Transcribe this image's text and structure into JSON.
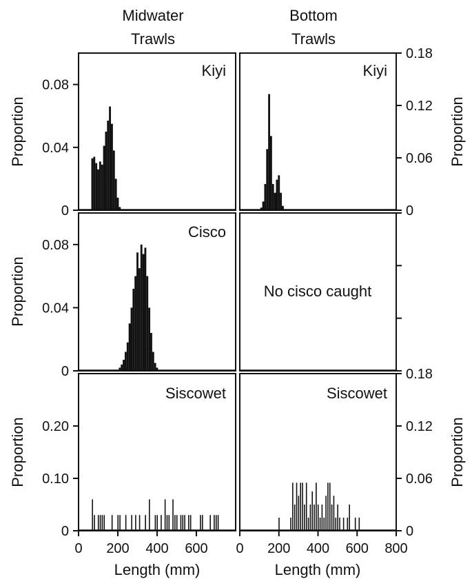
{
  "headers": {
    "left": [
      "Midwater",
      "Trawls"
    ],
    "right": [
      "Bottom",
      "Trawls"
    ]
  },
  "colors": {
    "ink": "#111111",
    "background": "#ffffff"
  },
  "chart_data": [
    {
      "id": "mid_kiyi",
      "type": "bar",
      "panel_label": "Kiyi",
      "ylabel": "Proportion",
      "xlim": [
        0,
        800
      ],
      "ylim": [
        0,
        0.1
      ],
      "yticks": [
        "0",
        "0.04",
        "0.08"
      ],
      "ytick_values": [
        0,
        0.04,
        0.08
      ],
      "bin_width": 10,
      "x": [
        70,
        80,
        90,
        100,
        110,
        120,
        130,
        140,
        150,
        160,
        170,
        180,
        190,
        200,
        210
      ],
      "values": [
        0.033,
        0.034,
        0.03,
        0.026,
        0.031,
        0.029,
        0.041,
        0.05,
        0.057,
        0.066,
        0.055,
        0.038,
        0.02,
        0.008,
        0.002
      ]
    },
    {
      "id": "bot_kiyi",
      "type": "bar",
      "panel_label": "Kiyi",
      "ylabel": "Proportion",
      "xlim": [
        0,
        800
      ],
      "ylim": [
        0,
        0.18
      ],
      "yticks": [
        "0",
        "0.06",
        "0.12",
        "0.18"
      ],
      "ytick_values": [
        0,
        0.06,
        0.12,
        0.18
      ],
      "bin_width": 10,
      "x": [
        110,
        120,
        130,
        140,
        150,
        160,
        170,
        180,
        190,
        200,
        210,
        220
      ],
      "values": [
        0.003,
        0.01,
        0.03,
        0.07,
        0.133,
        0.085,
        0.03,
        0.02,
        0.035,
        0.04,
        0.02,
        0.005
      ]
    },
    {
      "id": "mid_cisco",
      "type": "bar",
      "panel_label": "Cisco",
      "ylabel": "Proportion",
      "xlim": [
        0,
        800
      ],
      "ylim": [
        0,
        0.1
      ],
      "yticks": [
        "0",
        "0.04",
        "0.08"
      ],
      "ytick_values": [
        0,
        0.04,
        0.08
      ],
      "bin_width": 10,
      "x": [
        210,
        220,
        230,
        240,
        250,
        260,
        270,
        280,
        290,
        300,
        310,
        320,
        330,
        340,
        350,
        360,
        370,
        380,
        390,
        400
      ],
      "values": [
        0.002,
        0.004,
        0.007,
        0.012,
        0.018,
        0.03,
        0.04,
        0.052,
        0.06,
        0.075,
        0.065,
        0.08,
        0.074,
        0.078,
        0.06,
        0.04,
        0.024,
        0.012,
        0.005,
        0.002
      ]
    },
    {
      "id": "bot_cisco",
      "type": "bar",
      "panel_label": "",
      "note": "No cisco caught",
      "xlim": [
        0,
        800
      ],
      "ylim": [
        0,
        0.18
      ],
      "yticks": [],
      "ytick_values": [
        0,
        0.06,
        0.12,
        0.18
      ],
      "x": [],
      "values": []
    },
    {
      "id": "mid_siscowet",
      "type": "bar",
      "panel_label": "Siscowet",
      "ylabel": "Proportion",
      "xlabel": "Length (mm)",
      "xlim": [
        0,
        800
      ],
      "ylim": [
        0,
        0.3
      ],
      "xticks": [
        "0",
        "200",
        "400",
        "600"
      ],
      "xtick_values": [
        0,
        200,
        400,
        600
      ],
      "yticks": [
        "0",
        "0.10",
        "0.20"
      ],
      "ytick_values": [
        0,
        0.1,
        0.2
      ],
      "bin_width": 4,
      "x": [
        70,
        80,
        100,
        110,
        120,
        130,
        170,
        200,
        210,
        240,
        270,
        290,
        310,
        340,
        360,
        390,
        400,
        420,
        440,
        450,
        460,
        480,
        490,
        500,
        520,
        530,
        540,
        560,
        570,
        620,
        630,
        670,
        690,
        700,
        710
      ],
      "values": [
        0.06,
        0.03,
        0.03,
        0.03,
        0.03,
        0.03,
        0.03,
        0.03,
        0.03,
        0.03,
        0.03,
        0.03,
        0.03,
        0.03,
        0.06,
        0.03,
        0.03,
        0.03,
        0.06,
        0.03,
        0.03,
        0.06,
        0.03,
        0.03,
        0.03,
        0.03,
        0.03,
        0.03,
        0.03,
        0.03,
        0.03,
        0.03,
        0.03,
        0.03,
        0.03
      ]
    },
    {
      "id": "bot_siscowet",
      "type": "bar",
      "panel_label": "Siscowet",
      "ylabel": "Proportion",
      "xlabel": "Length (mm)",
      "xlim": [
        0,
        800
      ],
      "ylim": [
        0,
        0.18
      ],
      "xticks": [
        "0",
        "200",
        "400",
        "600",
        "800"
      ],
      "xtick_values": [
        0,
        200,
        400,
        600,
        800
      ],
      "yticks": [
        "0",
        "0.06",
        "0.12",
        "0.18"
      ],
      "ytick_values": [
        0,
        0.06,
        0.12,
        0.18
      ],
      "bin_width": 4,
      "x": [
        200,
        260,
        270,
        280,
        290,
        300,
        310,
        320,
        330,
        340,
        350,
        360,
        370,
        380,
        390,
        400,
        410,
        420,
        430,
        440,
        450,
        460,
        470,
        480,
        490,
        500,
        510,
        530,
        550,
        560,
        590,
        610
      ],
      "values": [
        0.015,
        0.015,
        0.055,
        0.03,
        0.055,
        0.04,
        0.055,
        0.055,
        0.03,
        0.055,
        0.015,
        0.03,
        0.045,
        0.03,
        0.055,
        0.03,
        0.015,
        0.03,
        0.015,
        0.04,
        0.055,
        0.055,
        0.03,
        0.04,
        0.015,
        0.03,
        0.015,
        0.015,
        0.015,
        0.03,
        0.015,
        0.015
      ]
    }
  ]
}
